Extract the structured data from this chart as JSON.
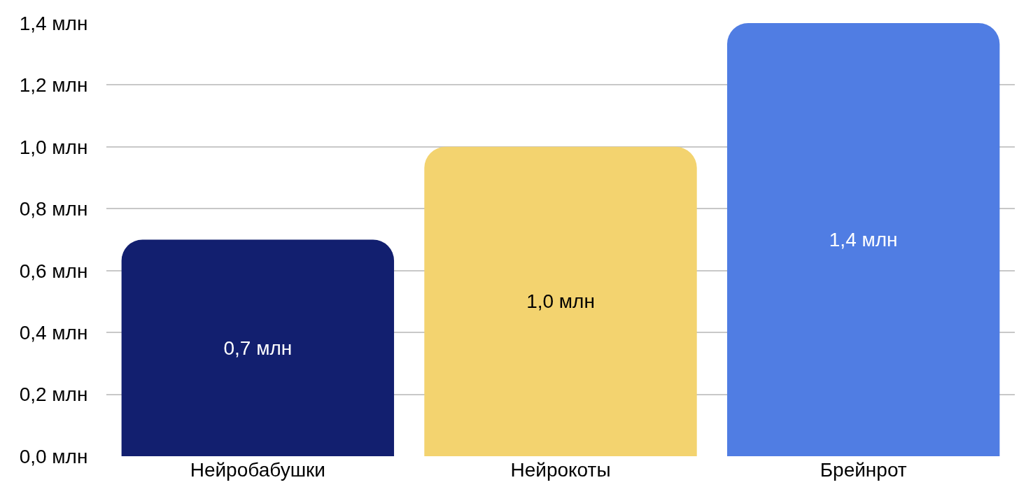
{
  "chart_data": {
    "type": "bar",
    "categories": [
      "Нейробабушки",
      "Нейрокоты",
      "Брейнрот"
    ],
    "values": [
      0.7,
      1.0,
      1.4
    ],
    "colors": [
      "#121f6f",
      "#f3d36f",
      "#507de3"
    ],
    "value_labels": [
      "0,7 млн",
      "1,0 млн",
      "1,4 млн"
    ],
    "ylim": [
      0,
      1.4
    ],
    "yticks": [
      {
        "value": 0,
        "label": "0,0 млн"
      },
      {
        "value": 0.2,
        "label": "0,2 млн"
      },
      {
        "value": 0.4,
        "label": "0,4 млн"
      },
      {
        "value": 0.6,
        "label": "0,6 млн"
      },
      {
        "value": 0.8,
        "label": "0,8 млн"
      },
      {
        "value": 1.0,
        "label": "1,0 млн"
      },
      {
        "value": 1.2,
        "label": "1,2 млн"
      },
      {
        "value": 1.4,
        "label": "1,4 млн"
      }
    ],
    "grid": "y"
  }
}
